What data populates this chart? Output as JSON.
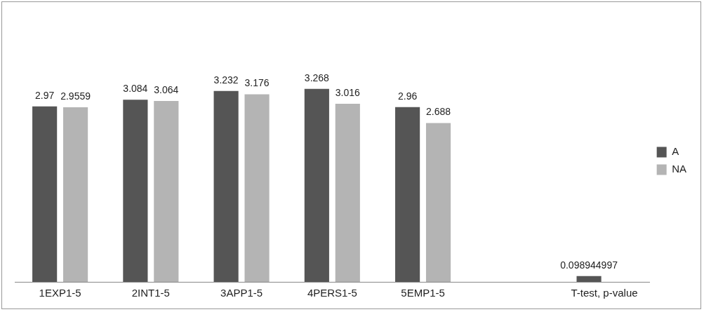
{
  "chart_data": {
    "type": "bar",
    "categories": [
      "1EXP1-5",
      "2INT1-5",
      "3APP1-5",
      "4PERS1-5",
      "5EMP1-5",
      null,
      "T-test, p-value"
    ],
    "series": [
      {
        "name": "A",
        "color": "#555555",
        "values": [
          2.97,
          3.084,
          3.232,
          3.268,
          2.96,
          null,
          0.098944997
        ]
      },
      {
        "name": "NA",
        "color": "#b4b4b4",
        "values": [
          2.9559,
          3.064,
          3.176,
          3.016,
          2.688,
          null,
          null
        ]
      }
    ],
    "tick_labels": "x",
    "grid": false,
    "legend": "right",
    "data_labels": true
  }
}
